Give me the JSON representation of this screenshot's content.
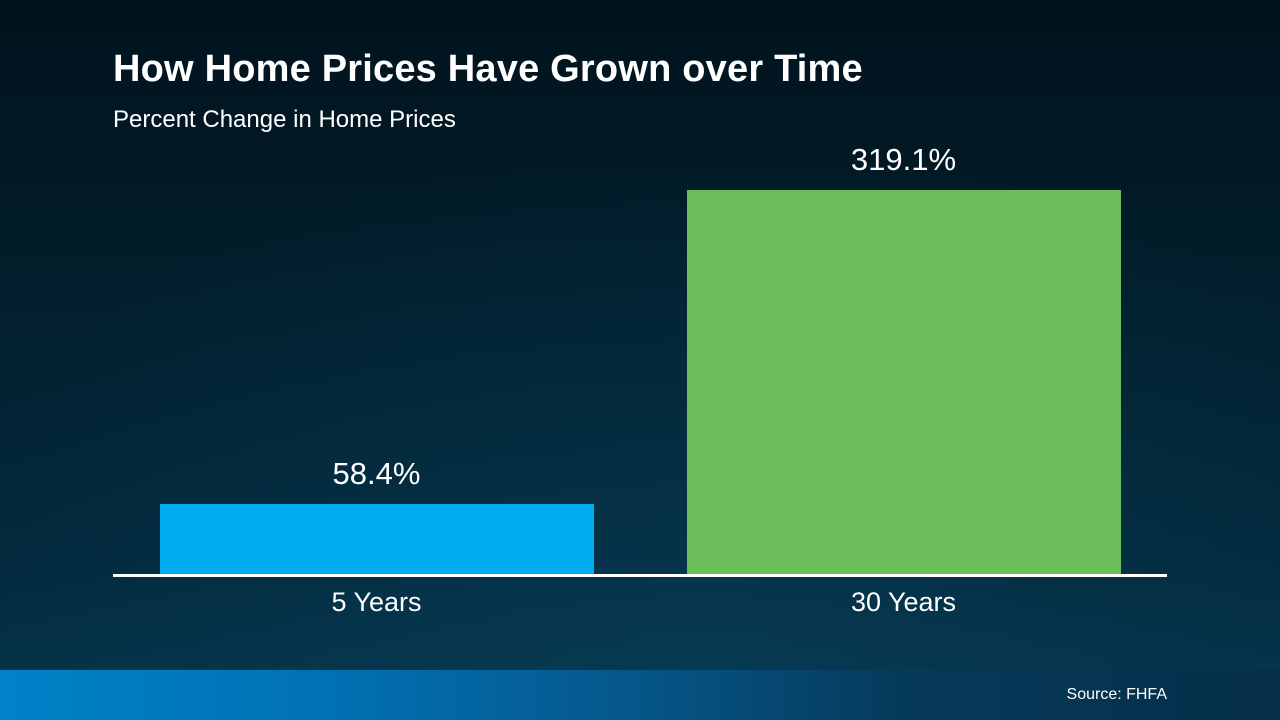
{
  "header": {
    "title": "How Home Prices Have Grown over Time",
    "subtitle": "Percent Change in Home Prices"
  },
  "chart_data": {
    "type": "bar",
    "title": "How Home Prices Have Grown over Time",
    "subtitle": "Percent Change in Home Prices",
    "categories": [
      "5 Years",
      "30 Years"
    ],
    "values": [
      58.4,
      319.1
    ],
    "value_labels": [
      "58.4%",
      "319.1%"
    ],
    "bar_colors": [
      "#00AEEF",
      "#6CBE5A"
    ],
    "xlabel": "",
    "ylabel": "",
    "ylim": [
      0,
      330
    ],
    "grid": false,
    "legend": "none",
    "background_color": "#02202e",
    "text_color": "#ffffff"
  },
  "footer": {
    "source_label": "Source: FHFA"
  }
}
